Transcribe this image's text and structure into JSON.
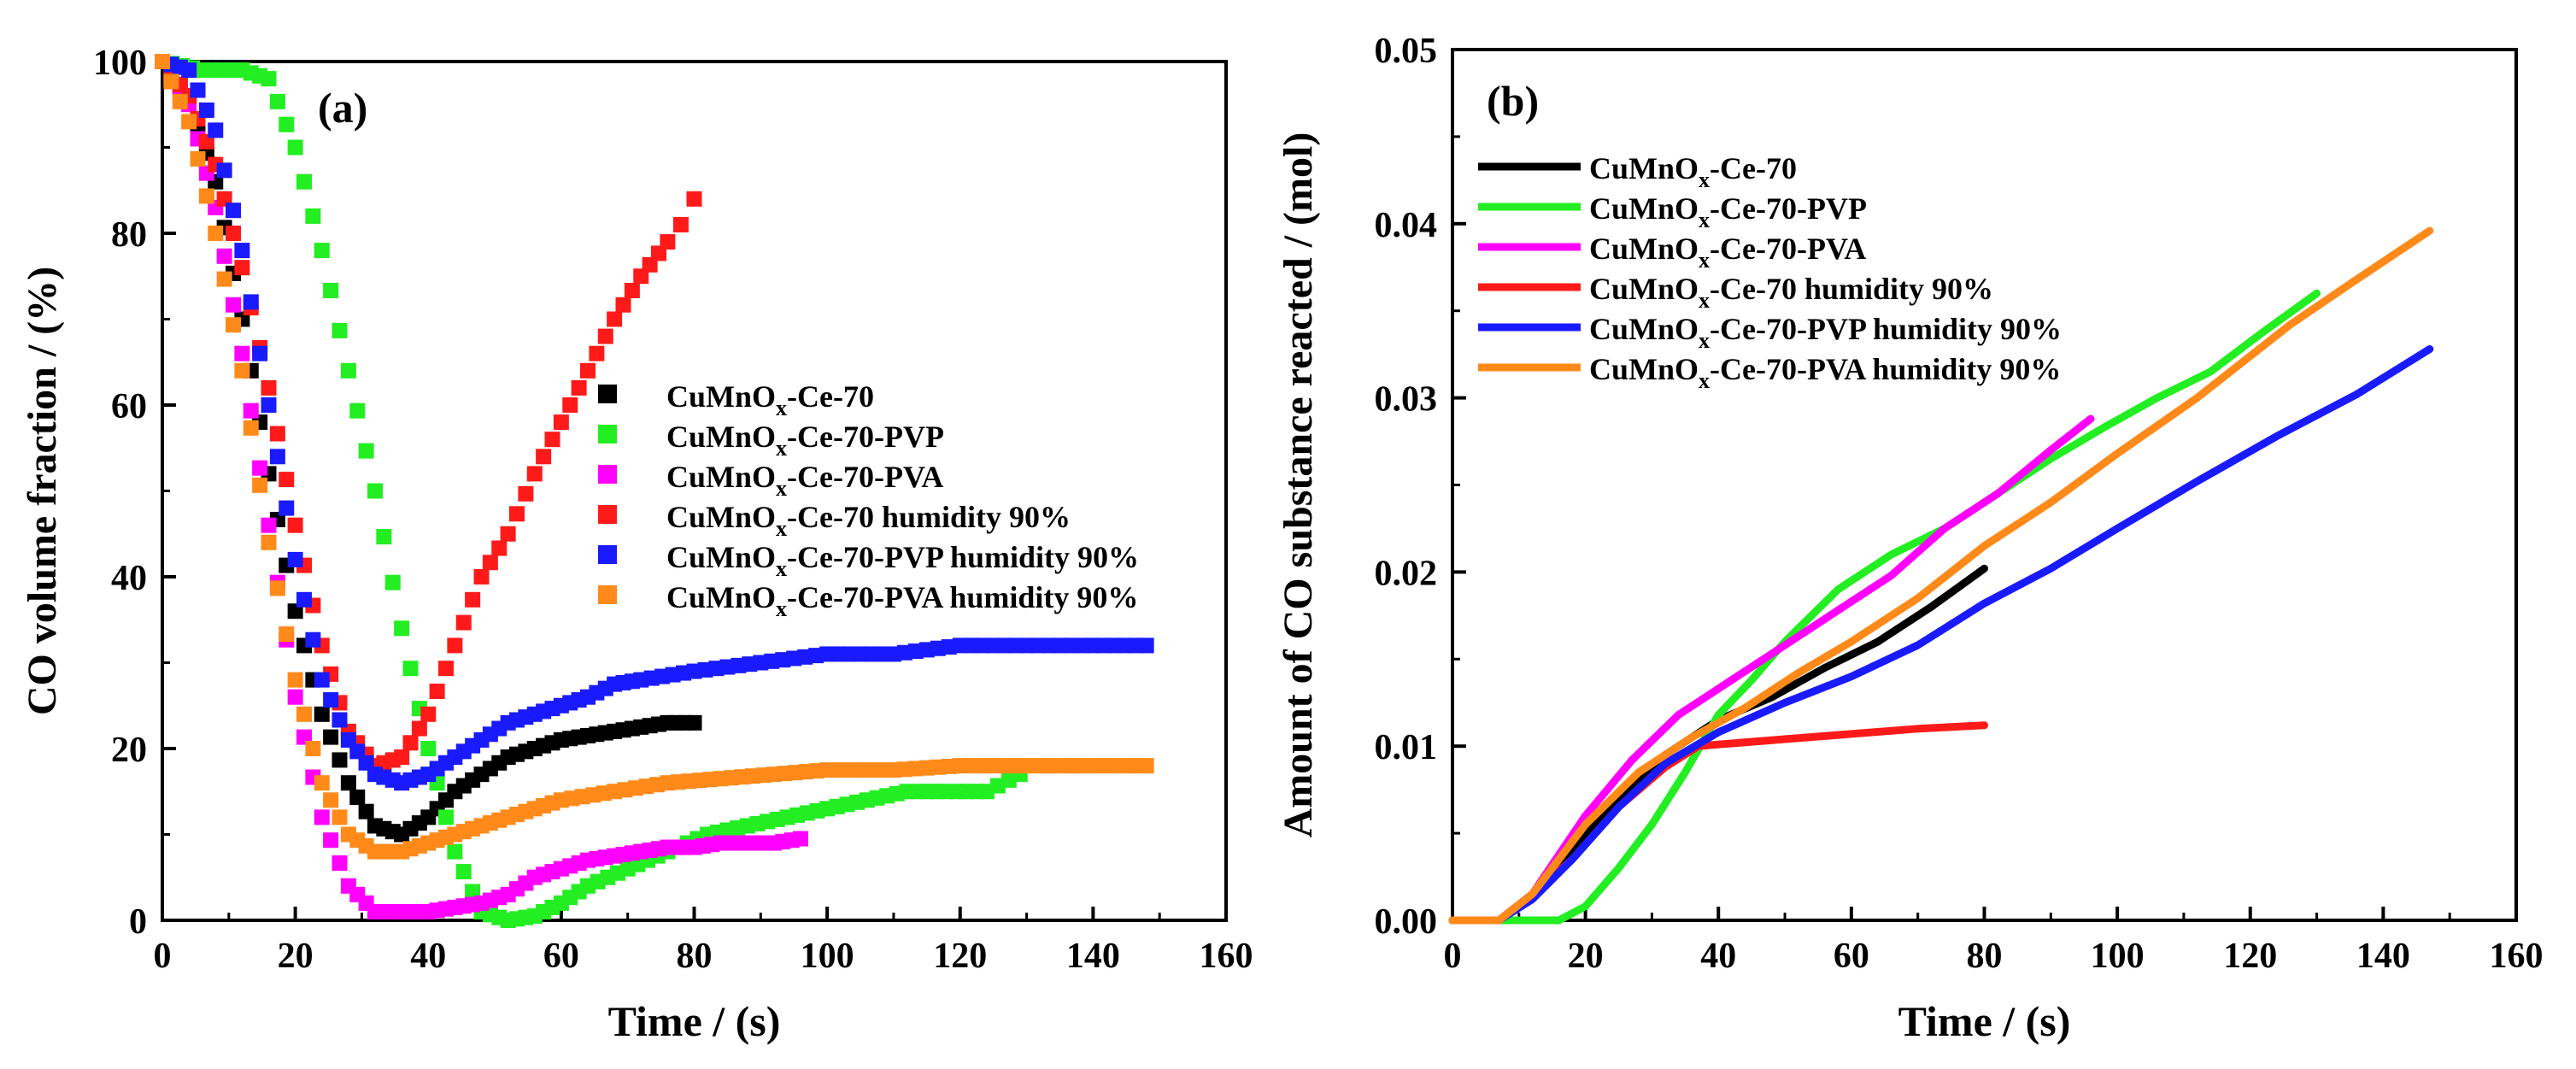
{
  "chart_data": [
    {
      "panel_label": "(a)",
      "type": "scatter",
      "xlabel": "Time / (s)",
      "ylabel": "CO volume fraction / (%)",
      "xlim": [
        0,
        160
      ],
      "ylim": [
        0,
        100
      ],
      "xticks": [
        "0",
        "20",
        "40",
        "60",
        "80",
        "100",
        "120",
        "140",
        "160"
      ],
      "yticks": [
        "0",
        "20",
        "40",
        "60",
        "80",
        "100"
      ],
      "legend_position": "center-right",
      "series": [
        {
          "name": "CuMnOx-Ce-70",
          "label_main": "CuMnO",
          "label_sub": "x",
          "label_rest": "-Ce-70",
          "color": "#000000",
          "points": [
            [
              0,
              100
            ],
            [
              4,
              96
            ],
            [
              8,
              86
            ],
            [
              12,
              70
            ],
            [
              16,
              52
            ],
            [
              20,
              36
            ],
            [
              24,
              24
            ],
            [
              28,
              16
            ],
            [
              32,
              11
            ],
            [
              36,
              10
            ],
            [
              40,
              12
            ],
            [
              44,
              15
            ],
            [
              48,
              17
            ],
            [
              52,
              19
            ],
            [
              56,
              20
            ],
            [
              60,
              21
            ],
            [
              64,
              21.5
            ],
            [
              68,
              22
            ],
            [
              72,
              22.5
            ],
            [
              76,
              23
            ],
            [
              80,
              23
            ]
          ]
        },
        {
          "name": "CuMnOx-Ce-70-PVP",
          "label_main": "CuMnO",
          "label_sub": "x",
          "label_rest": "-Ce-70-PVP",
          "color": "#22ee22",
          "points": [
            [
              0,
              100
            ],
            [
              6,
              99
            ],
            [
              12,
              99
            ],
            [
              16,
              98
            ],
            [
              20,
              90
            ],
            [
              24,
              78
            ],
            [
              28,
              64
            ],
            [
              32,
              50
            ],
            [
              36,
              34
            ],
            [
              40,
              20
            ],
            [
              44,
              8
            ],
            [
              48,
              1
            ],
            [
              52,
              0
            ],
            [
              56,
              0.5
            ],
            [
              60,
              2
            ],
            [
              64,
              4
            ],
            [
              70,
              6
            ],
            [
              76,
              8
            ],
            [
              82,
              10
            ],
            [
              88,
              11
            ],
            [
              94,
              12
            ],
            [
              100,
              13
            ],
            [
              106,
              14
            ],
            [
              112,
              15
            ],
            [
              118,
              15
            ],
            [
              124,
              15
            ],
            [
              129,
              17
            ]
          ]
        },
        {
          "name": "CuMnOx-Ce-70-PVA",
          "label_main": "CuMnO",
          "label_sub": "x",
          "label_rest": "-Ce-70-PVA",
          "color": "#ff00ff",
          "points": [
            [
              0,
              100
            ],
            [
              4,
              95
            ],
            [
              8,
              83
            ],
            [
              12,
              66
            ],
            [
              16,
              46
            ],
            [
              20,
              26
            ],
            [
              24,
              12
            ],
            [
              28,
              4
            ],
            [
              32,
              1
            ],
            [
              36,
              1
            ],
            [
              40,
              1
            ],
            [
              44,
              1.5
            ],
            [
              48,
              2
            ],
            [
              52,
              3
            ],
            [
              56,
              5
            ],
            [
              60,
              6
            ],
            [
              64,
              7
            ],
            [
              68,
              7.5
            ],
            [
              72,
              8
            ],
            [
              76,
              8.5
            ],
            [
              80,
              8.5
            ],
            [
              84,
              9
            ],
            [
              88,
              9
            ],
            [
              92,
              9
            ],
            [
              96,
              9.5
            ]
          ]
        },
        {
          "name": "CuMnOx-Ce-70 humidity 90%",
          "label_main": "CuMnO",
          "label_sub": "x",
          "label_rest": "-Ce-70 humidity 90%",
          "color": "#ff1a1a",
          "points": [
            [
              0,
              100
            ],
            [
              4,
              96
            ],
            [
              8,
              88
            ],
            [
              12,
              76
            ],
            [
              16,
              62
            ],
            [
              20,
              46
            ],
            [
              24,
              32
            ],
            [
              28,
              22
            ],
            [
              32,
              18
            ],
            [
              36,
              19
            ],
            [
              40,
              24
            ],
            [
              44,
              32
            ],
            [
              48,
              40
            ],
            [
              52,
              45
            ],
            [
              56,
              52
            ],
            [
              60,
              58
            ],
            [
              64,
              64
            ],
            [
              68,
              70
            ],
            [
              72,
              75
            ],
            [
              76,
              79
            ],
            [
              78,
              81
            ],
            [
              80,
              84
            ]
          ]
        },
        {
          "name": "CuMnOx-Ce-70-PVP humidity 90%",
          "label_main": "CuMnO",
          "label_sub": "x",
          "label_rest": "-Ce-70-PVP humidity 90%",
          "color": "#1a1aff",
          "points": [
            [
              0,
              100
            ],
            [
              4,
              99
            ],
            [
              8,
              92
            ],
            [
              12,
              78
            ],
            [
              16,
              60
            ],
            [
              20,
              42
            ],
            [
              24,
              28
            ],
            [
              28,
              21
            ],
            [
              32,
              17
            ],
            [
              36,
              16
            ],
            [
              40,
              17
            ],
            [
              44,
              19
            ],
            [
              48,
              21
            ],
            [
              52,
              23
            ],
            [
              56,
              24
            ],
            [
              60,
              25
            ],
            [
              64,
              26
            ],
            [
              68,
              27.5
            ],
            [
              72,
              28
            ],
            [
              80,
              29
            ],
            [
              90,
              30
            ],
            [
              100,
              31
            ],
            [
              110,
              31
            ],
            [
              120,
              32
            ],
            [
              130,
              32
            ],
            [
              140,
              32
            ],
            [
              148,
              32
            ]
          ]
        },
        {
          "name": "CuMnOx-Ce-70-PVA humidity 90%",
          "label_main": "CuMnO",
          "label_sub": "x",
          "label_rest": "-Ce-70-PVA humidity 90%",
          "color": "#ff8a1a",
          "points": [
            [
              0,
              100
            ],
            [
              4,
              93
            ],
            [
              8,
              80
            ],
            [
              12,
              64
            ],
            [
              16,
              44
            ],
            [
              20,
              28
            ],
            [
              24,
              16
            ],
            [
              28,
              10
            ],
            [
              32,
              8
            ],
            [
              36,
              8
            ],
            [
              40,
              9
            ],
            [
              44,
              10
            ],
            [
              48,
              11
            ],
            [
              52,
              12
            ],
            [
              56,
              13
            ],
            [
              60,
              14
            ],
            [
              68,
              15
            ],
            [
              76,
              16
            ],
            [
              84,
              16.5
            ],
            [
              92,
              17
            ],
            [
              100,
              17.5
            ],
            [
              110,
              17.5
            ],
            [
              120,
              18
            ],
            [
              130,
              18
            ],
            [
              140,
              18
            ],
            [
              148,
              18
            ]
          ]
        }
      ]
    },
    {
      "panel_label": "(b)",
      "type": "line",
      "xlabel": "Time / (s)",
      "ylabel": "Amount of CO substance reacted / (mol)",
      "xlim": [
        0,
        160
      ],
      "ylim": [
        0,
        0.05
      ],
      "xticks": [
        "0",
        "20",
        "40",
        "60",
        "80",
        "100",
        "120",
        "140",
        "160"
      ],
      "yticks": [
        "0.00",
        "0.01",
        "0.02",
        "0.03",
        "0.04",
        "0.05"
      ],
      "legend_position": "top-left",
      "series": [
        {
          "name": "CuMnOx-Ce-70",
          "label_main": "CuMnO",
          "label_sub": "x",
          "label_rest": "-Ce-70",
          "color": "#000000",
          "points": [
            [
              0,
              0
            ],
            [
              7,
              0
            ],
            [
              12,
              0.0015
            ],
            [
              18,
              0.004
            ],
            [
              25,
              0.007
            ],
            [
              32,
              0.0095
            ],
            [
              40,
              0.0115
            ],
            [
              48,
              0.0128
            ],
            [
              56,
              0.0145
            ],
            [
              64,
              0.016
            ],
            [
              72,
              0.018
            ],
            [
              80,
              0.0202
            ]
          ]
        },
        {
          "name": "CuMnOx-Ce-70-PVP",
          "label_main": "CuMnO",
          "label_sub": "x",
          "label_rest": "-Ce-70-PVP",
          "color": "#22ee22",
          "points": [
            [
              0,
              0
            ],
            [
              16,
              0
            ],
            [
              20,
              0.0008
            ],
            [
              25,
              0.003
            ],
            [
              30,
              0.0055
            ],
            [
              35,
              0.0085
            ],
            [
              40,
              0.0118
            ],
            [
              45,
              0.0138
            ],
            [
              50,
              0.016
            ],
            [
              58,
              0.019
            ],
            [
              66,
              0.021
            ],
            [
              74,
              0.0225
            ],
            [
              82,
              0.0245
            ],
            [
              90,
              0.0265
            ],
            [
              98,
              0.0283
            ],
            [
              106,
              0.03
            ],
            [
              114,
              0.0315
            ],
            [
              122,
              0.0338
            ],
            [
              130,
              0.036
            ]
          ]
        },
        {
          "name": "CuMnOx-Ce-70-PVA",
          "label_main": "CuMnO",
          "label_sub": "x",
          "label_rest": "-Ce-70-PVA",
          "color": "#ff00ff",
          "points": [
            [
              0,
              0
            ],
            [
              7,
              0
            ],
            [
              12,
              0.0015
            ],
            [
              20,
              0.006
            ],
            [
              27,
              0.0092
            ],
            [
              34,
              0.0118
            ],
            [
              42,
              0.0138
            ],
            [
              50,
              0.0158
            ],
            [
              58,
              0.0178
            ],
            [
              66,
              0.0198
            ],
            [
              74,
              0.0225
            ],
            [
              82,
              0.0245
            ],
            [
              90,
              0.027
            ],
            [
              96,
              0.0288
            ]
          ]
        },
        {
          "name": "CuMnOx-Ce-70 humidity 90%",
          "label_main": "CuMnO",
          "label_sub": "x",
          "label_rest": "-Ce-70 humidity 90%",
          "color": "#ff1a1a",
          "points": [
            [
              0,
              0
            ],
            [
              7,
              0
            ],
            [
              12,
              0.0015
            ],
            [
              18,
              0.0035
            ],
            [
              25,
              0.0065
            ],
            [
              32,
              0.0088
            ],
            [
              37,
              0.01
            ],
            [
              40,
              0.0101
            ],
            [
              50,
              0.0104
            ],
            [
              60,
              0.0107
            ],
            [
              70,
              0.011
            ],
            [
              80,
              0.0112
            ]
          ]
        },
        {
          "name": "CuMnOx-Ce-70-PVP humidity 90%",
          "label_main": "CuMnO",
          "label_sub": "x",
          "label_rest": "-Ce-70-PVP humidity 90%",
          "color": "#1a1aff",
          "points": [
            [
              0,
              0
            ],
            [
              7,
              0
            ],
            [
              12,
              0.0012
            ],
            [
              18,
              0.0035
            ],
            [
              25,
              0.0065
            ],
            [
              32,
              0.009
            ],
            [
              40,
              0.0108
            ],
            [
              50,
              0.0125
            ],
            [
              60,
              0.014
            ],
            [
              70,
              0.0158
            ],
            [
              80,
              0.0182
            ],
            [
              90,
              0.0202
            ],
            [
              100,
              0.0225
            ],
            [
              112,
              0.0252
            ],
            [
              124,
              0.0278
            ],
            [
              136,
              0.0302
            ],
            [
              147,
              0.0328
            ]
          ]
        },
        {
          "name": "CuMnOx-Ce-70-PVA humidity 90%",
          "label_main": "CuMnO",
          "label_sub": "x",
          "label_rest": "-Ce-70-PVA humidity 90%",
          "color": "#ff8a1a",
          "points": [
            [
              0,
              0
            ],
            [
              7,
              0
            ],
            [
              12,
              0.0015
            ],
            [
              20,
              0.0055
            ],
            [
              28,
              0.0085
            ],
            [
              36,
              0.0105
            ],
            [
              44,
              0.0122
            ],
            [
              52,
              0.0142
            ],
            [
              60,
              0.016
            ],
            [
              70,
              0.0185
            ],
            [
              80,
              0.0215
            ],
            [
              90,
              0.024
            ],
            [
              100,
              0.0268
            ],
            [
              112,
              0.03
            ],
            [
              126,
              0.0342
            ],
            [
              136,
              0.0368
            ],
            [
              147,
              0.0396
            ]
          ]
        }
      ]
    }
  ]
}
